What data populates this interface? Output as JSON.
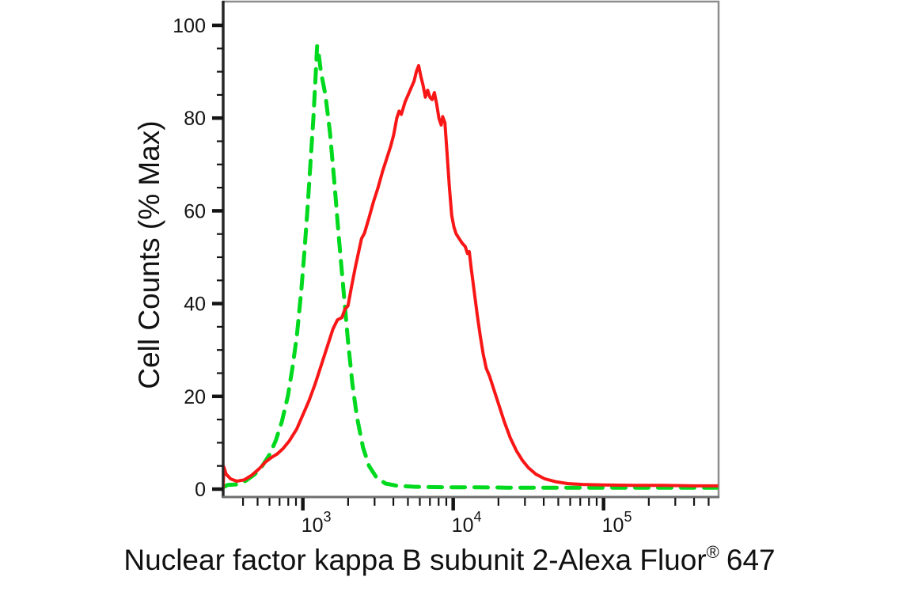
{
  "figure": {
    "background_color": "#ffffff",
    "text_color": "#111111"
  },
  "chart_data": {
    "type": "line",
    "subtype": "flow_cytometry_histogram_overlay",
    "title": "",
    "xlabel": "Nuclear factor kappa B subunit 2-Alexa Fluor® 647",
    "xlabel_parts": {
      "main": "Nuclear factor kappa B subunit 2-Alexa Fluor",
      "registered_symbol": "®",
      "suffix": "647"
    },
    "ylabel": "Cell Counts (% Max)",
    "grid": false,
    "legend": "none",
    "x_scale": "log",
    "x_range_values": [
      300,
      580000
    ],
    "x_log10_range": [
      2.47,
      5.765
    ],
    "ylim": [
      0,
      104
    ],
    "y_axis": {
      "major_ticks": [
        0,
        20,
        40,
        60,
        80,
        100
      ],
      "tick_labels": [
        "0",
        "20",
        "40",
        "60",
        "80",
        "100"
      ],
      "minor_tick_step": 5
    },
    "x_axis": {
      "major_ticks": [
        {
          "value": 1000,
          "label_base": "10",
          "label_exponent": "3"
        },
        {
          "value": 10000,
          "label_base": "10",
          "label_exponent": "4"
        },
        {
          "value": 100000,
          "label_base": "10",
          "label_exponent": "5"
        }
      ],
      "minor_tick_mantissas": [
        2,
        3,
        4,
        5,
        6,
        7,
        8,
        9
      ],
      "minor_tick_decades": [
        2,
        3,
        4,
        5
      ]
    },
    "series": [
      {
        "id": "green-dashed",
        "color": "#00d91e",
        "line_style": "dashed",
        "stroke_width": 5,
        "dash_pattern": [
          17,
          12
        ],
        "peak": {
          "x_value": 1200,
          "y_percent": 95.5
        },
        "points_log10x_y": [
          [
            2.47,
            0.4
          ],
          [
            2.5,
            0.9
          ],
          [
            2.56,
            1.0
          ],
          [
            2.62,
            1.8
          ],
          [
            2.68,
            3.2
          ],
          [
            2.73,
            5.0
          ],
          [
            2.78,
            7.5
          ],
          [
            2.82,
            10.5
          ],
          [
            2.86,
            14.5
          ],
          [
            2.9,
            20
          ],
          [
            2.93,
            26
          ],
          [
            2.96,
            33
          ],
          [
            2.99,
            43
          ],
          [
            3.01,
            51
          ],
          [
            3.03,
            60
          ],
          [
            3.05,
            70
          ],
          [
            3.07,
            80
          ],
          [
            3.085,
            89
          ],
          [
            3.095,
            95.5
          ],
          [
            3.105,
            94
          ],
          [
            3.12,
            90
          ],
          [
            3.15,
            85
          ],
          [
            3.18,
            77
          ],
          [
            3.21,
            66
          ],
          [
            3.24,
            54
          ],
          [
            3.27,
            43
          ],
          [
            3.3,
            32
          ],
          [
            3.33,
            22.5
          ],
          [
            3.36,
            15.5
          ],
          [
            3.4,
            9
          ],
          [
            3.44,
            5
          ],
          [
            3.49,
            2.5
          ],
          [
            3.55,
            1.2
          ],
          [
            3.63,
            0.7
          ],
          [
            3.75,
            0.5
          ],
          [
            3.95,
            0.4
          ],
          [
            4.15,
            0.4
          ],
          [
            4.35,
            0.3
          ],
          [
            4.55,
            0.3
          ],
          [
            4.8,
            0.3
          ],
          [
            5.05,
            0.3
          ],
          [
            5.3,
            0.3
          ],
          [
            5.55,
            0.3
          ],
          [
            5.765,
            0.3
          ]
        ]
      },
      {
        "id": "red-solid",
        "color": "#f81616",
        "line_style": "solid",
        "stroke_width": 4,
        "dash_pattern": null,
        "peak": {
          "x_value": 5900,
          "y_percent": 91.3
        },
        "points_log10x_y": [
          [
            2.47,
            0.3
          ],
          [
            2.474,
            4.8
          ],
          [
            2.49,
            3.2
          ],
          [
            2.52,
            2.2
          ],
          [
            2.56,
            1.7
          ],
          [
            2.61,
            2.0
          ],
          [
            2.66,
            3.0
          ],
          [
            2.71,
            4.4
          ],
          [
            2.75,
            5.8
          ],
          [
            2.79,
            6.8
          ],
          [
            2.83,
            7.6
          ],
          [
            2.87,
            8.8
          ],
          [
            2.91,
            10.4
          ],
          [
            2.96,
            13
          ],
          [
            3.0,
            16
          ],
          [
            3.04,
            19
          ],
          [
            3.08,
            22.5
          ],
          [
            3.12,
            26.5
          ],
          [
            3.16,
            30.5
          ],
          [
            3.2,
            34.5
          ],
          [
            3.23,
            36.5
          ],
          [
            3.26,
            37
          ],
          [
            3.28,
            38.8
          ],
          [
            3.3,
            39.5
          ],
          [
            3.32,
            43
          ],
          [
            3.335,
            45.5
          ],
          [
            3.35,
            48
          ],
          [
            3.37,
            51
          ],
          [
            3.39,
            54
          ],
          [
            3.41,
            55.2
          ],
          [
            3.44,
            58.5
          ],
          [
            3.47,
            62
          ],
          [
            3.5,
            65
          ],
          [
            3.53,
            68.5
          ],
          [
            3.56,
            71.5
          ],
          [
            3.585,
            74
          ],
          [
            3.605,
            76.5
          ],
          [
            3.625,
            80
          ],
          [
            3.64,
            81.5
          ],
          [
            3.655,
            80.8
          ],
          [
            3.68,
            83.5
          ],
          [
            3.7,
            85
          ],
          [
            3.72,
            86.5
          ],
          [
            3.74,
            88
          ],
          [
            3.755,
            90
          ],
          [
            3.77,
            91.3
          ],
          [
            3.785,
            89
          ],
          [
            3.8,
            87
          ],
          [
            3.815,
            84.5
          ],
          [
            3.83,
            86
          ],
          [
            3.845,
            84.5
          ],
          [
            3.86,
            84
          ],
          [
            3.875,
            85.5
          ],
          [
            3.89,
            83
          ],
          [
            3.905,
            80
          ],
          [
            3.92,
            78.5
          ],
          [
            3.93,
            80.3
          ],
          [
            3.945,
            79
          ],
          [
            3.96,
            72
          ],
          [
            3.975,
            65
          ],
          [
            3.99,
            59
          ],
          [
            4.005,
            56.5
          ],
          [
            4.02,
            55
          ],
          [
            4.04,
            54
          ],
          [
            4.06,
            53
          ],
          [
            4.08,
            52.3
          ],
          [
            4.095,
            50.8
          ],
          [
            4.107,
            51.2
          ],
          [
            4.12,
            47.5
          ],
          [
            4.14,
            42.5
          ],
          [
            4.16,
            37.5
          ],
          [
            4.18,
            33
          ],
          [
            4.2,
            29
          ],
          [
            4.22,
            26
          ],
          [
            4.24,
            24.5
          ],
          [
            4.27,
            21.5
          ],
          [
            4.3,
            18.5
          ],
          [
            4.34,
            14.5
          ],
          [
            4.38,
            11
          ],
          [
            4.42,
            8.3
          ],
          [
            4.46,
            6.2
          ],
          [
            4.5,
            4.6
          ],
          [
            4.55,
            3.2
          ],
          [
            4.61,
            2.2
          ],
          [
            4.68,
            1.6
          ],
          [
            4.76,
            1.2
          ],
          [
            4.86,
            1.0
          ],
          [
            5.0,
            0.9
          ],
          [
            5.2,
            0.8
          ],
          [
            5.4,
            0.8
          ],
          [
            5.6,
            0.7
          ],
          [
            5.765,
            0.7
          ]
        ]
      }
    ]
  }
}
